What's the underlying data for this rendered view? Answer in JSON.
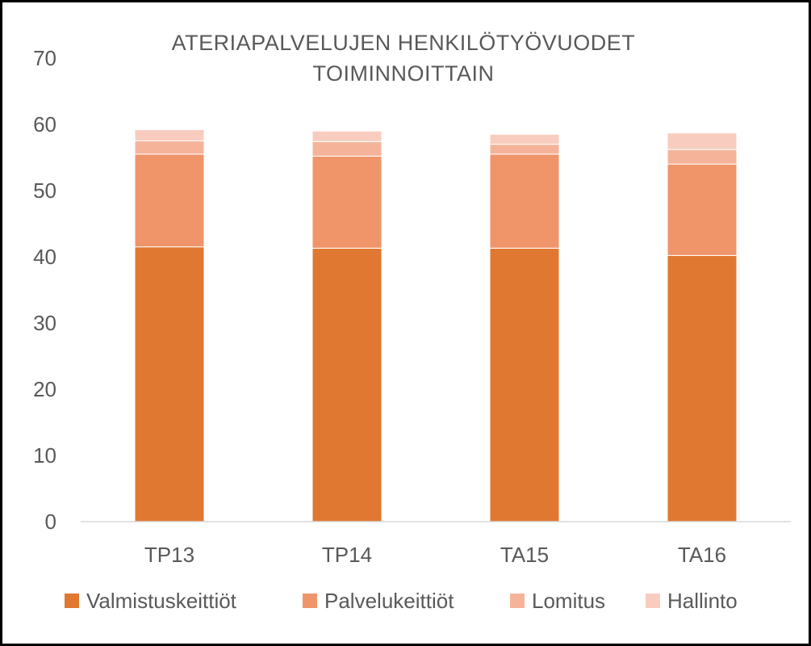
{
  "chart_data": {
    "type": "bar",
    "stacked": true,
    "title_lines": [
      "ATERIAPALVELUJEN  HENKILÖTYÖVUODET",
      "TOIMINNOITTAIN"
    ],
    "categories": [
      "TP13",
      "TP14",
      "TA15",
      "TA16"
    ],
    "series": [
      {
        "name": "Valmistuskeittiöt",
        "color": "#E07832",
        "values": [
          41.5,
          41.3,
          41.3,
          40.2
        ]
      },
      {
        "name": "Palvelukeittiöt",
        "color": "#F0946A",
        "values": [
          14.0,
          13.9,
          14.2,
          13.8
        ]
      },
      {
        "name": "Lomitus",
        "color": "#F5B49A",
        "values": [
          2.0,
          2.2,
          1.5,
          2.2
        ]
      },
      {
        "name": "Hallinto",
        "color": "#F8CDBF",
        "values": [
          1.7,
          1.6,
          1.5,
          2.5
        ]
      }
    ],
    "yticks": [
      0,
      10,
      20,
      30,
      40,
      50,
      60,
      70
    ],
    "ylim": [
      0,
      70
    ],
    "grid": false,
    "legend_position": "bottom"
  }
}
